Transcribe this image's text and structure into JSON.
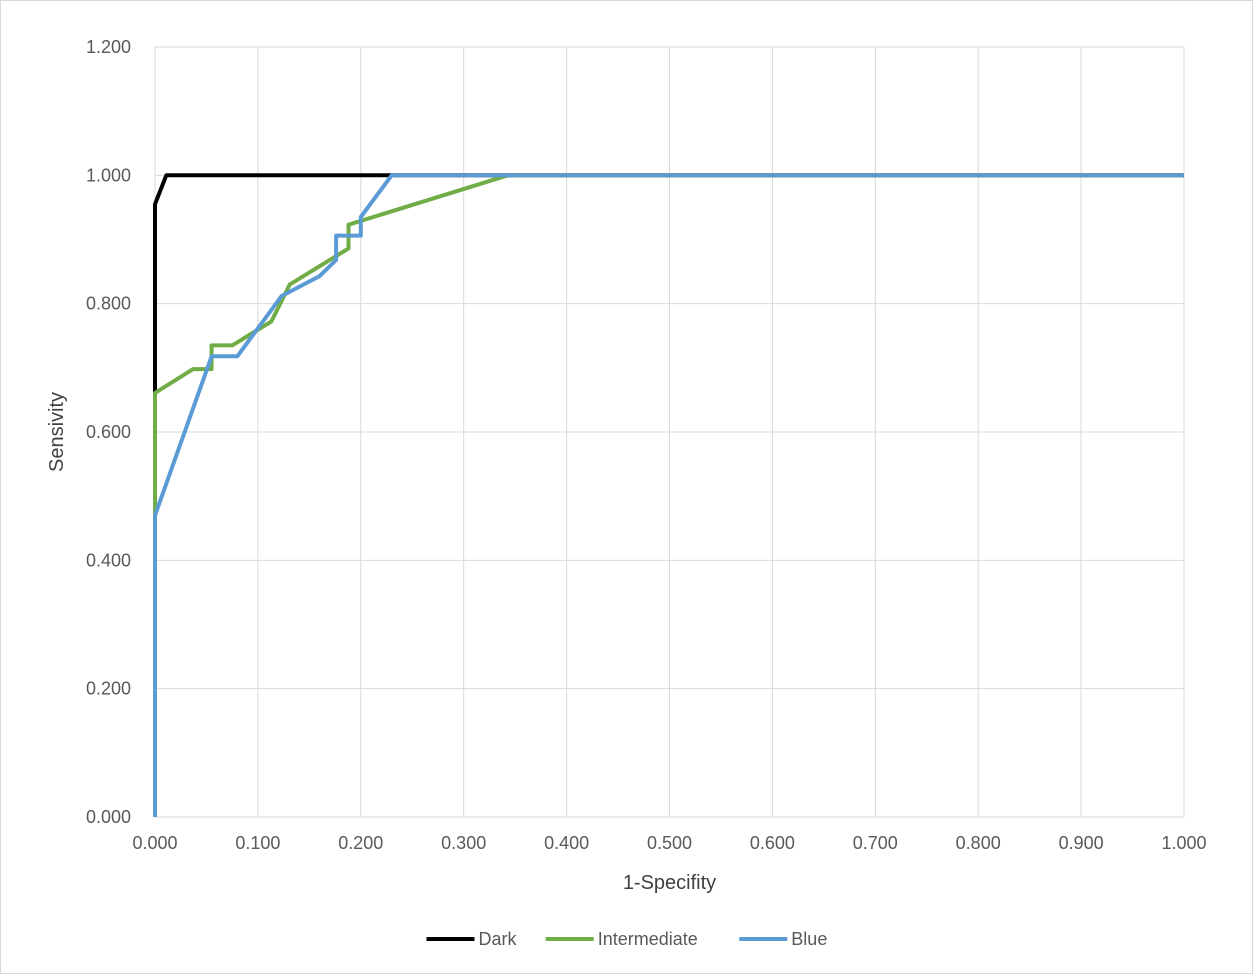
{
  "chart_data": {
    "type": "line",
    "title": "",
    "xlabel": "1-Specifity",
    "ylabel": "Sensivity",
    "xlim": [
      0,
      1
    ],
    "ylim": [
      0,
      1.2
    ],
    "x_ticks": [
      "0.000",
      "0.100",
      "0.200",
      "0.300",
      "0.400",
      "0.500",
      "0.600",
      "0.700",
      "0.800",
      "0.900",
      "1.000"
    ],
    "y_ticks": [
      "0.000",
      "0.200",
      "0.400",
      "0.600",
      "0.800",
      "1.000",
      "1.200"
    ],
    "grid": true,
    "legend_position": "bottom",
    "series": [
      {
        "name": "Dark",
        "color": "#000000",
        "points": [
          [
            0,
            0
          ],
          [
            0,
            0.667
          ],
          [
            0,
            0.955
          ],
          [
            0.011,
            1.0
          ],
          [
            0.23,
            1.0
          ],
          [
            1.0,
            1.0
          ]
        ]
      },
      {
        "name": "Intermediate",
        "color": "#70ad47",
        "points": [
          [
            0,
            0
          ],
          [
            0,
            0.661
          ],
          [
            0.037,
            0.698
          ],
          [
            0.055,
            0.698
          ],
          [
            0.055,
            0.735
          ],
          [
            0.075,
            0.735
          ],
          [
            0.113,
            0.772
          ],
          [
            0.131,
            0.83
          ],
          [
            0.188,
            0.886
          ],
          [
            0.188,
            0.923
          ],
          [
            0.343,
            1.0
          ],
          [
            1.0,
            1.0
          ]
        ]
      },
      {
        "name": "Blue",
        "color": "#5b9bd5",
        "points": [
          [
            0,
            0
          ],
          [
            0,
            0.47
          ],
          [
            0.055,
            0.718
          ],
          [
            0.08,
            0.718
          ],
          [
            0.123,
            0.812
          ],
          [
            0.16,
            0.843
          ],
          [
            0.176,
            0.868
          ],
          [
            0.176,
            0.906
          ],
          [
            0.2,
            0.906
          ],
          [
            0.2,
            0.935
          ],
          [
            0.23,
            1.0
          ],
          [
            1.0,
            1.0
          ]
        ]
      }
    ]
  }
}
